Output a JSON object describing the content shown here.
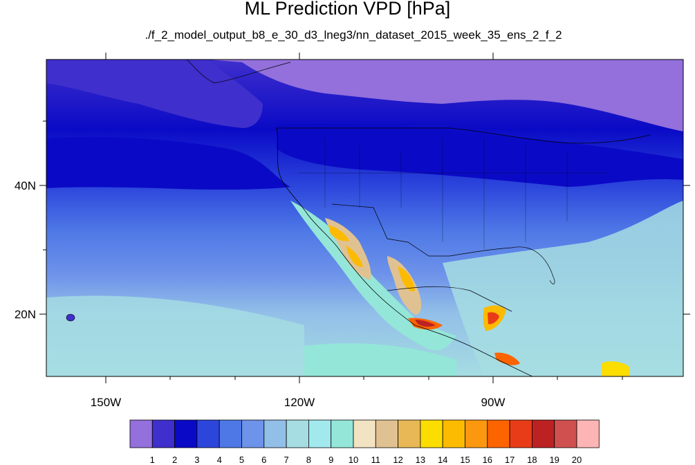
{
  "title": "ML Prediction VPD [hPa]",
  "subtitle": "./f_2_model_output_b8_e_30_d3_lneg3/nn_dataset_2015_week_35_ens_2_f_2",
  "lat_labels": [
    "40N",
    "20N"
  ],
  "lon_labels": [
    "150W",
    "120W",
    "90W"
  ],
  "colorbar": {
    "labels": [
      "1",
      "2",
      "3",
      "4",
      "5",
      "6",
      "7",
      "8",
      "9",
      "10",
      "11",
      "12",
      "13",
      "14",
      "15",
      "16",
      "17",
      "18",
      "19",
      "20"
    ],
    "colors": [
      "#9370db",
      "#3f2fcc",
      "#0a0ac6",
      "#2c46dc",
      "#4e78e6",
      "#6e93ea",
      "#92bfe8",
      "#a6dde2",
      "#a2e9ee",
      "#94e6d8",
      "#f2e3c2",
      "#e0c292",
      "#e8b856",
      "#fcdd00",
      "#fcbb00",
      "#fc9810",
      "#fc6400",
      "#e83c18",
      "#bc2222",
      "#d05050",
      "#fcb4b4"
    ]
  },
  "colors": {
    "land_border": "#000000",
    "frame": "#000000"
  }
}
